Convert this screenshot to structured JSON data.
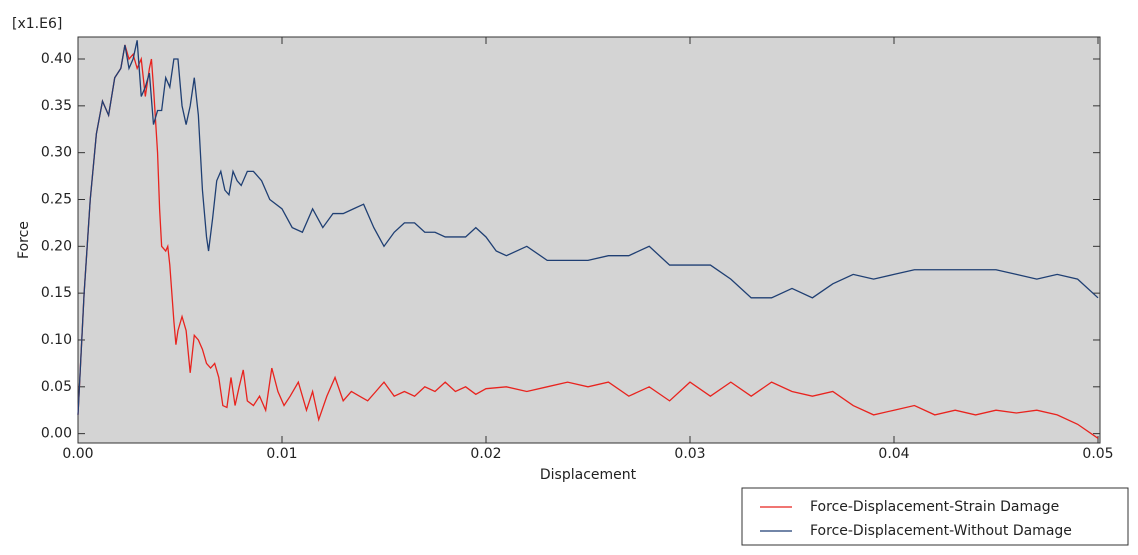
{
  "chart_data": {
    "type": "line",
    "xlabel": "Displacement",
    "ylabel": "Force",
    "y_multiplier": "[x1.E6]",
    "xlim": [
      0,
      0.05
    ],
    "ylim": [
      -0.01,
      0.4235
    ],
    "xticks": [
      {
        "value": 0,
        "label": "0.00"
      },
      {
        "value": 0.01,
        "label": "0.01"
      },
      {
        "value": 0.02,
        "label": "0.02"
      },
      {
        "value": 0.03,
        "label": "0.03"
      },
      {
        "value": 0.04,
        "label": "0.04"
      },
      {
        "value": 0.05,
        "label": "0.05"
      }
    ],
    "yticks": [
      {
        "value": 0,
        "label": "0.00"
      },
      {
        "value": 0.05,
        "label": "0.05"
      },
      {
        "value": 0.1,
        "label": "0.10"
      },
      {
        "value": 0.15,
        "label": "0.15"
      },
      {
        "value": 0.2,
        "label": "0.20"
      },
      {
        "value": 0.25,
        "label": "0.25"
      },
      {
        "value": 0.3,
        "label": "0.30"
      },
      {
        "value": 0.35,
        "label": "0.35"
      },
      {
        "value": 0.4,
        "label": "0.40"
      }
    ],
    "legend": "bottom-right",
    "series": [
      {
        "name": "Force-Displacement-Strain Damage",
        "color": "#e8231e",
        "x": [
          0,
          0.0003,
          0.0006,
          0.0009,
          0.0012,
          0.0015,
          0.0018,
          0.0021,
          0.0023,
          0.0025,
          0.0027,
          0.0029,
          0.0031,
          0.0033,
          0.0035,
          0.0036,
          0.0037,
          0.0039,
          0.004,
          0.0041,
          0.0043,
          0.0044,
          0.0045,
          0.0047,
          0.0048,
          0.0049,
          0.0051,
          0.0053,
          0.0055,
          0.0057,
          0.0059,
          0.0061,
          0.0063,
          0.0065,
          0.0067,
          0.0069,
          0.0071,
          0.0073,
          0.0075,
          0.0077,
          0.0079,
          0.0081,
          0.0083,
          0.0086,
          0.0089,
          0.0092,
          0.0095,
          0.0098,
          0.0101,
          0.0104,
          0.0108,
          0.0112,
          0.0115,
          0.0118,
          0.0122,
          0.0126,
          0.013,
          0.0134,
          0.0138,
          0.0142,
          0.0146,
          0.015,
          0.0155,
          0.016,
          0.0165,
          0.017,
          0.0175,
          0.018,
          0.0185,
          0.019,
          0.0195,
          0.02,
          0.021,
          0.022,
          0.023,
          0.024,
          0.025,
          0.026,
          0.027,
          0.028,
          0.029,
          0.03,
          0.031,
          0.032,
          0.033,
          0.034,
          0.035,
          0.036,
          0.037,
          0.038,
          0.039,
          0.04,
          0.041,
          0.042,
          0.043,
          0.044,
          0.045,
          0.046,
          0.047,
          0.048,
          0.049,
          0.05
        ],
        "values": [
          0.02,
          0.15,
          0.25,
          0.32,
          0.355,
          0.34,
          0.38,
          0.39,
          0.415,
          0.4,
          0.405,
          0.39,
          0.4,
          0.36,
          0.39,
          0.4,
          0.37,
          0.3,
          0.24,
          0.2,
          0.195,
          0.2,
          0.18,
          0.12,
          0.095,
          0.11,
          0.125,
          0.11,
          0.065,
          0.105,
          0.1,
          0.09,
          0.075,
          0.07,
          0.075,
          0.06,
          0.03,
          0.028,
          0.06,
          0.03,
          0.05,
          0.068,
          0.035,
          0.03,
          0.04,
          0.025,
          0.07,
          0.045,
          0.03,
          0.04,
          0.055,
          0.025,
          0.045,
          0.015,
          0.04,
          0.06,
          0.035,
          0.045,
          0.04,
          0.035,
          0.045,
          0.055,
          0.04,
          0.045,
          0.04,
          0.05,
          0.045,
          0.055,
          0.045,
          0.05,
          0.042,
          0.048,
          0.05,
          0.045,
          0.05,
          0.055,
          0.05,
          0.055,
          0.04,
          0.05,
          0.035,
          0.055,
          0.04,
          0.055,
          0.04,
          0.055,
          0.045,
          0.04,
          0.045,
          0.03,
          0.02,
          0.025,
          0.03,
          0.02,
          0.025,
          0.02,
          0.025,
          0.022,
          0.025,
          0.02,
          0.01,
          -0.005
        ]
      },
      {
        "name": "Force-Displacement-Without Damage",
        "color": "#1f3f73",
        "x": [
          0,
          0.0003,
          0.0006,
          0.0009,
          0.0012,
          0.0015,
          0.0018,
          0.0021,
          0.0023,
          0.0025,
          0.0027,
          0.0029,
          0.0031,
          0.0033,
          0.0035,
          0.0037,
          0.0039,
          0.0041,
          0.0043,
          0.0045,
          0.0047,
          0.0049,
          0.0051,
          0.0053,
          0.0055,
          0.0057,
          0.0059,
          0.0061,
          0.0063,
          0.0064,
          0.0066,
          0.0068,
          0.007,
          0.0072,
          0.0074,
          0.0076,
          0.0078,
          0.008,
          0.0083,
          0.0086,
          0.009,
          0.0094,
          0.01,
          0.0105,
          0.011,
          0.0115,
          0.012,
          0.0125,
          0.013,
          0.0135,
          0.014,
          0.0145,
          0.015,
          0.0155,
          0.016,
          0.0165,
          0.017,
          0.0175,
          0.018,
          0.0185,
          0.019,
          0.0195,
          0.02,
          0.0205,
          0.021,
          0.022,
          0.023,
          0.024,
          0.025,
          0.026,
          0.027,
          0.028,
          0.029,
          0.03,
          0.031,
          0.032,
          0.033,
          0.034,
          0.035,
          0.036,
          0.037,
          0.038,
          0.039,
          0.04,
          0.041,
          0.042,
          0.043,
          0.044,
          0.045,
          0.046,
          0.047,
          0.048,
          0.049,
          0.05
        ],
        "values": [
          0.02,
          0.15,
          0.25,
          0.32,
          0.355,
          0.34,
          0.38,
          0.39,
          0.415,
          0.39,
          0.4,
          0.42,
          0.36,
          0.37,
          0.385,
          0.33,
          0.345,
          0.345,
          0.38,
          0.37,
          0.4,
          0.4,
          0.35,
          0.33,
          0.35,
          0.38,
          0.34,
          0.26,
          0.21,
          0.195,
          0.23,
          0.27,
          0.28,
          0.26,
          0.255,
          0.28,
          0.27,
          0.265,
          0.28,
          0.28,
          0.27,
          0.25,
          0.24,
          0.22,
          0.215,
          0.24,
          0.22,
          0.235,
          0.235,
          0.24,
          0.245,
          0.22,
          0.2,
          0.215,
          0.225,
          0.225,
          0.215,
          0.215,
          0.21,
          0.21,
          0.21,
          0.22,
          0.21,
          0.195,
          0.19,
          0.2,
          0.185,
          0.185,
          0.185,
          0.19,
          0.19,
          0.2,
          0.18,
          0.18,
          0.18,
          0.165,
          0.145,
          0.145,
          0.155,
          0.145,
          0.16,
          0.17,
          0.165,
          0.17,
          0.175,
          0.175,
          0.175,
          0.175,
          0.175,
          0.17,
          0.165,
          0.17,
          0.165,
          0.145
        ]
      }
    ]
  }
}
